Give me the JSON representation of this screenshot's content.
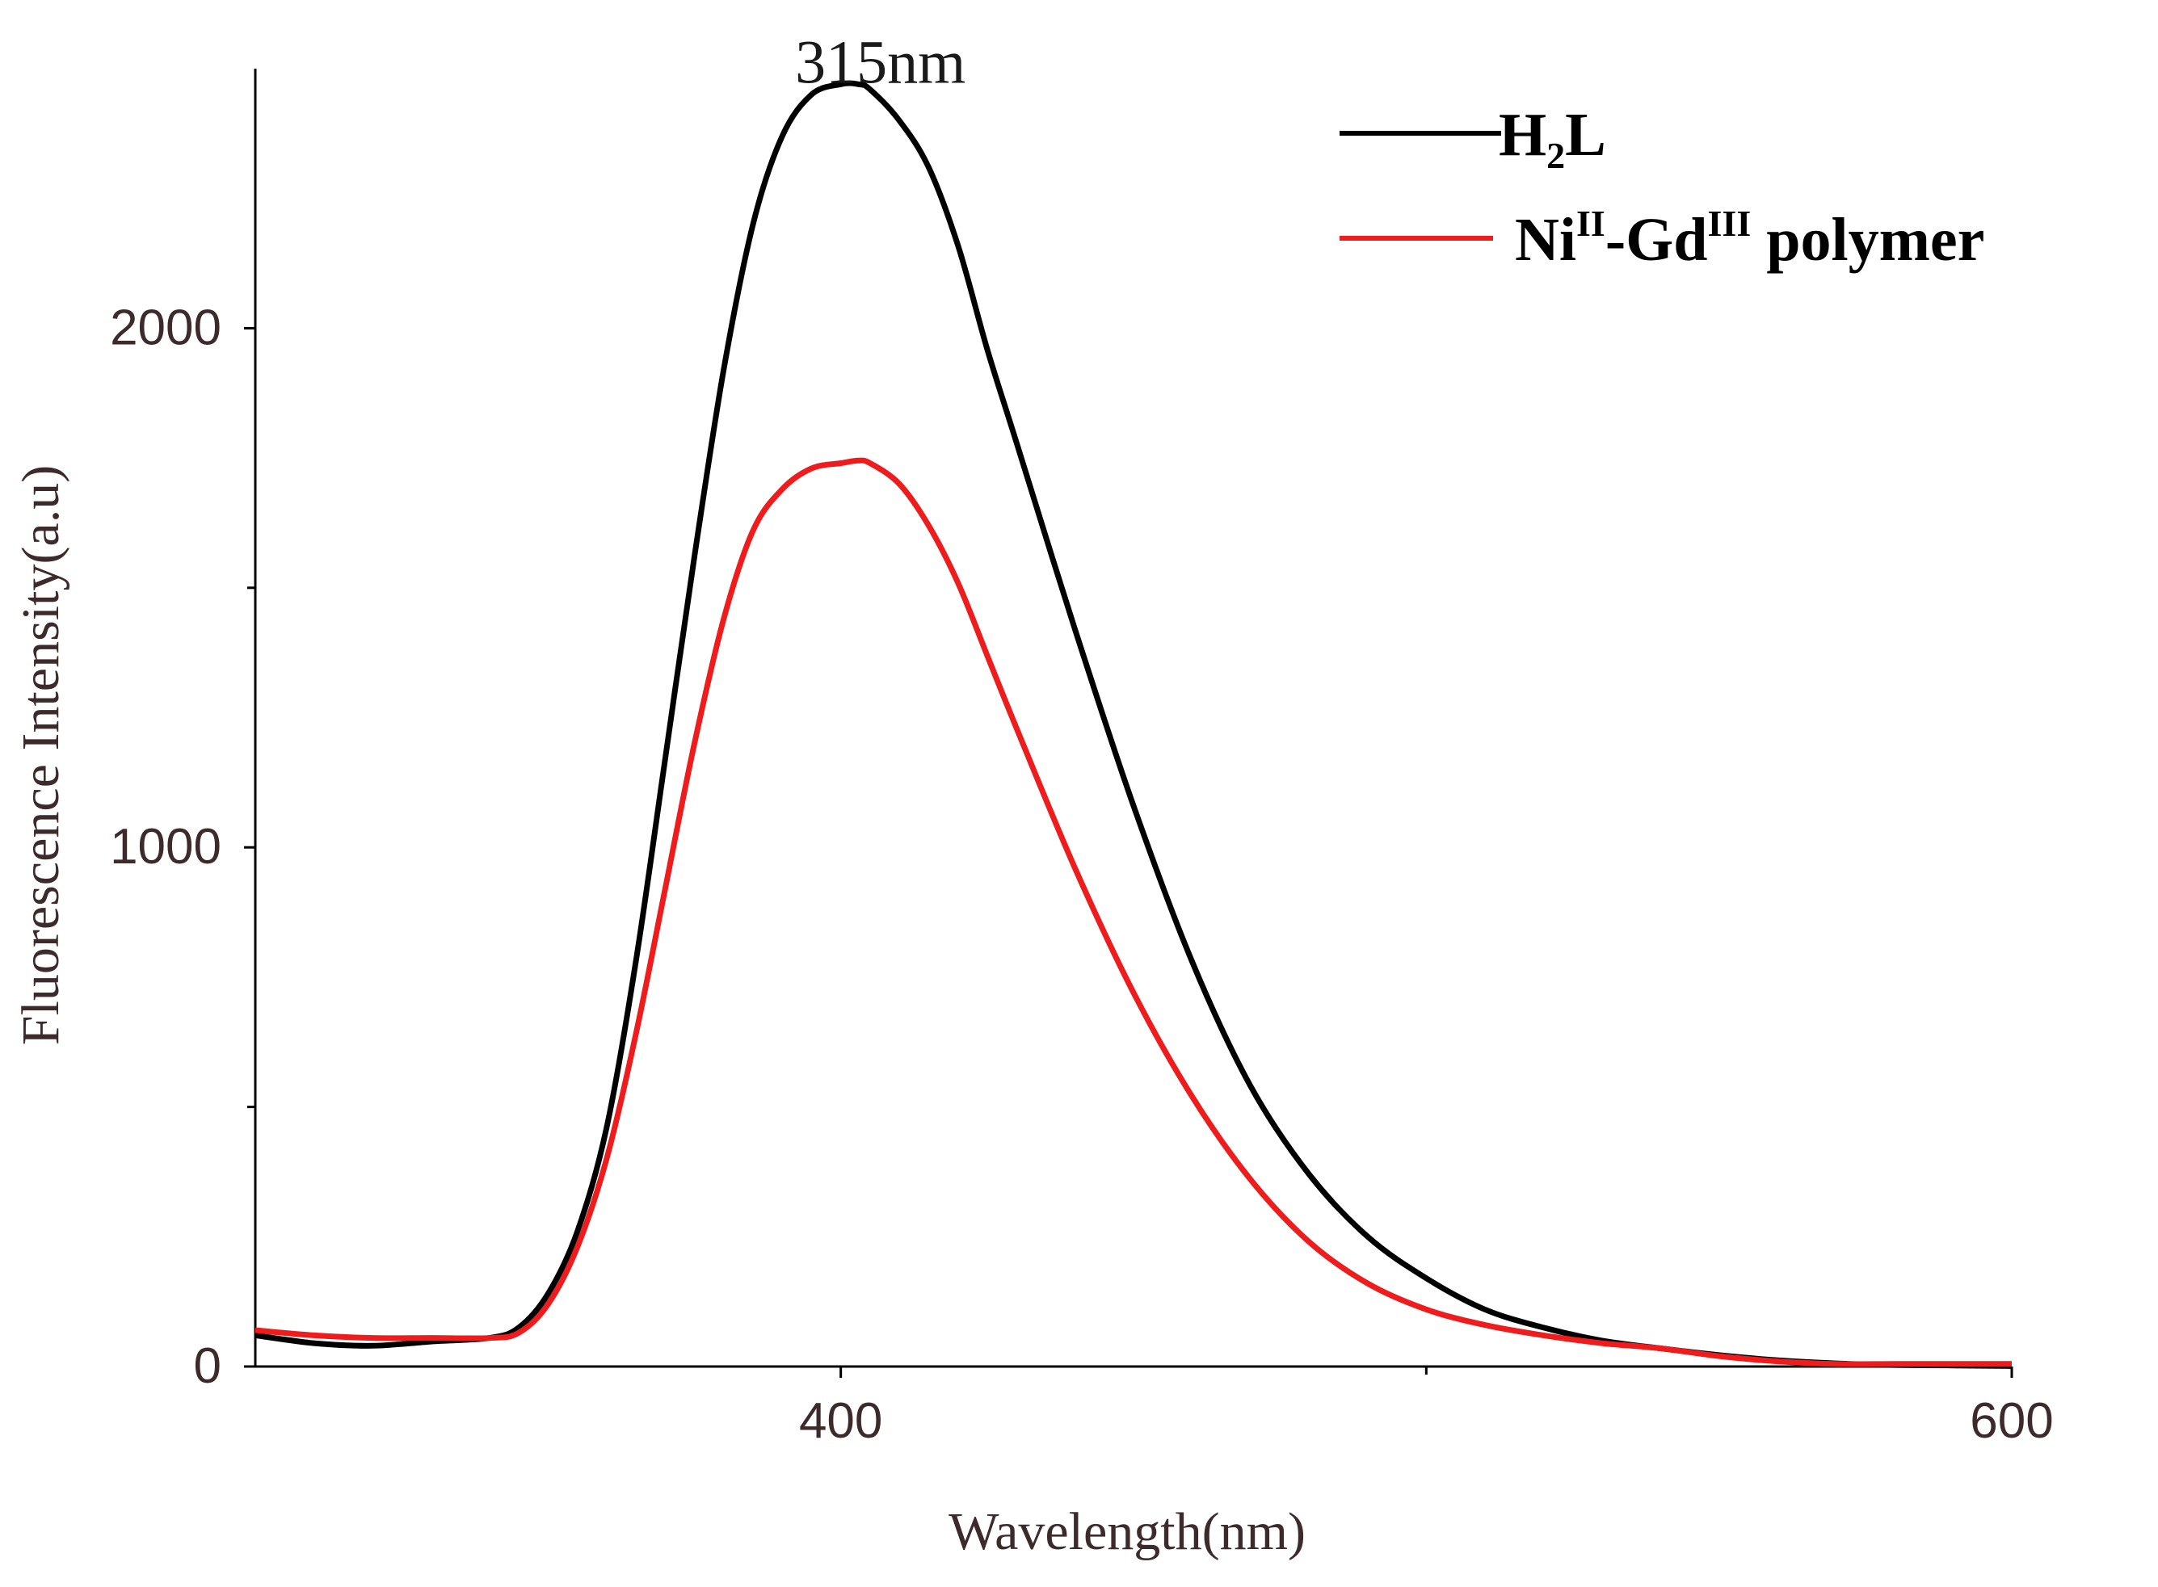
{
  "chart_data": {
    "type": "line",
    "title": "",
    "xlabel": "Wavelength(nm)",
    "ylabel": "Fluorescence Intensity(a.u)",
    "xlim": [
      300,
      600
    ],
    "ylim": [
      0,
      2500
    ],
    "x_ticks": [
      400,
      600
    ],
    "x_tick_labels": [
      "400",
      "600"
    ],
    "x_minor_ticks": [
      500
    ],
    "y_ticks": [
      0,
      1000,
      2000
    ],
    "y_tick_labels": [
      "0",
      "1000",
      "2000"
    ],
    "y_minor_ticks": [
      500,
      1500
    ],
    "annotation": {
      "text": "315nm",
      "x": 404,
      "y": 2470
    },
    "legend": {
      "position": "top-right"
    },
    "x": [
      300,
      310,
      320,
      330,
      340,
      345,
      350,
      355,
      360,
      365,
      370,
      375,
      380,
      385,
      390,
      395,
      400,
      403,
      405,
      410,
      415,
      420,
      425,
      430,
      440,
      450,
      460,
      470,
      480,
      490,
      500,
      510,
      520,
      530,
      540,
      550,
      560,
      570,
      580,
      590,
      600
    ],
    "series": [
      {
        "name": "H2L",
        "label_main": "H",
        "label_sub": "2",
        "label_tail": "L",
        "color": "#000000",
        "values": [
          60,
          45,
          40,
          48,
          55,
          75,
          140,
          260,
          460,
          780,
          1170,
          1560,
          1920,
          2200,
          2370,
          2450,
          2470,
          2470,
          2460,
          2400,
          2310,
          2160,
          1960,
          1780,
          1420,
          1080,
          780,
          540,
          370,
          250,
          170,
          110,
          75,
          50,
          35,
          22,
          12,
          6,
          3,
          2,
          1
        ]
      },
      {
        "name": "NiII-GdIII polymer",
        "label_prefix": "Ni",
        "label_sup1": "II",
        "label_mid": "-Gd",
        "label_sup2": "III",
        "label_suffix": " polymer",
        "color": "#ee1c1c",
        "values": [
          70,
          60,
          55,
          55,
          55,
          65,
          120,
          230,
          400,
          640,
          920,
          1200,
          1440,
          1610,
          1690,
          1730,
          1740,
          1745,
          1740,
          1700,
          1620,
          1510,
          1370,
          1230,
          960,
          720,
          520,
          360,
          240,
          160,
          110,
          80,
          60,
          45,
          35,
          20,
          10,
          5,
          5,
          5,
          5
        ]
      }
    ]
  }
}
